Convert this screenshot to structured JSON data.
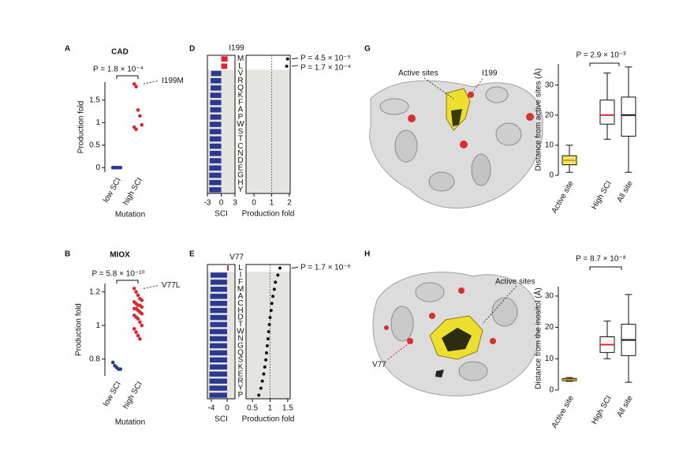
{
  "chart_data": [
    {
      "type": "strip",
      "panel": "A",
      "title": "CAD",
      "ylabel": "Production fold",
      "xlabel": "Mutation",
      "categories": [
        "low SCI",
        "high SCI"
      ],
      "colors": [
        "#2b3990",
        "#e0262b"
      ],
      "values": [
        [
          0,
          0,
          0,
          0,
          0,
          0,
          0
        ],
        [
          1.86,
          1.8,
          1.28,
          1.15,
          0.95,
          0.9,
          0.85
        ]
      ],
      "ylim": [
        -0.1,
        1.9
      ],
      "yticks": [
        0,
        0.5,
        1,
        1.5
      ],
      "annotation": "P = 1.8 × 10⁻⁴",
      "highlight_label": "I199M"
    },
    {
      "type": "strip",
      "panel": "B",
      "title": "MIOX",
      "ylabel": "Production fold",
      "xlabel": "Mutation",
      "categories": [
        "low SCI",
        "high SCI"
      ],
      "colors": [
        "#2b3990",
        "#e0262b"
      ],
      "values": [
        [
          0.78,
          0.76,
          0.75,
          0.74,
          0.74
        ],
        [
          1.22,
          1.2,
          1.18,
          1.16,
          1.15,
          1.14,
          1.13,
          1.12,
          1.12,
          1.11,
          1.1,
          1.1,
          1.09,
          1.08,
          1.07,
          1.06,
          1.05,
          1.04,
          1.02,
          1.0,
          0.98,
          0.96,
          0.94,
          0.92
        ]
      ],
      "ylim": [
        0.7,
        1.25
      ],
      "yticks": [
        0.8,
        1,
        1.2
      ],
      "annotation": "P = 5.8 × 10⁻¹⁰",
      "highlight_label": "V77L"
    },
    {
      "type": "bar-dot",
      "panel": "D",
      "title": "I199",
      "categories": [
        "M",
        "L",
        "V",
        "R",
        "Q",
        "K",
        "F",
        "A",
        "P",
        "W",
        "S",
        "T",
        "C",
        "N",
        "D",
        "E",
        "G",
        "H",
        "Y"
      ],
      "bar_values": [
        1.4,
        1.3,
        -2.2,
        -2.3,
        -2.3,
        -2.4,
        -2.4,
        -2.4,
        -2.4,
        -2.5,
        -2.5,
        -2.5,
        -2.5,
        -2.5,
        -2.5,
        -2.6,
        -2.6,
        -2.6,
        -2.6
      ],
      "bar_colors": [
        "#e0262b",
        "#e0262b",
        "#2b3990",
        "#2b3990",
        "#2b3990",
        "#2b3990",
        "#2b3990",
        "#2b3990",
        "#2b3990",
        "#2b3990",
        "#2b3990",
        "#2b3990",
        "#2b3990",
        "#2b3990",
        "#2b3990",
        "#2b3990",
        "#2b3990",
        "#2b3990",
        "#2b3990"
      ],
      "bar_xlim": [
        -3,
        3
      ],
      "bar_xticks": [
        -3,
        0,
        3
      ],
      "bar_xlabel": "SCI",
      "dot_values": [
        1.9,
        1.85,
        null,
        null,
        null,
        null,
        null,
        null,
        null,
        null,
        null,
        null,
        null,
        null,
        null,
        null,
        null,
        null,
        null
      ],
      "dot_color": "#111111",
      "dot_xlim": [
        -0.45,
        2.05
      ],
      "dot_xticks": [
        0,
        1,
        2
      ],
      "dot_xlabel": "Production fold",
      "dot_reference": 1,
      "annotations": [
        "P = 4.5 × 10⁻⁵",
        "P = 1.7 × 10⁻⁴"
      ]
    },
    {
      "type": "bar-dot",
      "panel": "E",
      "title": "V77",
      "categories": [
        "L",
        "I",
        "F",
        "M",
        "A",
        "C",
        "H",
        "D",
        "T",
        "W",
        "N",
        "G",
        "Q",
        "S",
        "K",
        "E",
        "R",
        "Y",
        "P"
      ],
      "bar_values": [
        0.4,
        -4.2,
        -4.2,
        -4.2,
        -4.3,
        -4.3,
        -4.3,
        -4.3,
        -4.3,
        -4.4,
        -4.4,
        -4.4,
        -4.4,
        -4.4,
        -4.4,
        -4.5,
        -4.5,
        -4.5,
        -4.5
      ],
      "bar_colors": [
        "#e0262b",
        "#2b3990",
        "#2b3990",
        "#2b3990",
        "#2b3990",
        "#2b3990",
        "#2b3990",
        "#2b3990",
        "#2b3990",
        "#2b3990",
        "#2b3990",
        "#2b3990",
        "#2b3990",
        "#2b3990",
        "#2b3990",
        "#2b3990",
        "#2b3990",
        "#2b3990",
        "#2b3990"
      ],
      "bar_xlim": [
        -5,
        2
      ],
      "bar_xticks": [
        -4,
        0
      ],
      "bar_xlabel": "SCI",
      "dot_values": [
        1.28,
        1.22,
        1.15,
        1.12,
        1.08,
        1.05,
        1.03,
        1.0,
        0.98,
        0.96,
        0.94,
        0.92,
        0.9,
        0.88,
        0.85,
        0.82,
        0.78,
        0.74,
        0.68
      ],
      "dot_color": "#111111",
      "dot_xlim": [
        0.32,
        1.57
      ],
      "dot_xticks": [
        0.5,
        1,
        1.5
      ],
      "dot_xlabel": "Production fold",
      "dot_reference": 1,
      "annotations": [
        "P = 1.7 × 10⁻⁶"
      ]
    },
    {
      "type": "box",
      "panel": "G",
      "ylabel": "Distance from active sites (Å)",
      "categories": [
        "Active site",
        "High SCI",
        "All site"
      ],
      "boxes": [
        {
          "min": 1,
          "q1": 3.5,
          "median": 5,
          "q3": 6.5,
          "max": 10
        },
        {
          "min": 12,
          "q1": 17,
          "median": 20,
          "q3": 25,
          "max": 34
        },
        {
          "min": 1,
          "q1": 13,
          "median": 20,
          "q3": 26,
          "max": 36
        }
      ],
      "box_colors": [
        "#f5e663",
        "#ffffff",
        "#ffffff"
      ],
      "median_colors": [
        "#d4a017",
        "#e0262b",
        "#111111"
      ],
      "ylim": [
        0,
        37
      ],
      "yticks": [
        0,
        10,
        20,
        30
      ],
      "annotation": "P = 2.9 × 10⁻³"
    },
    {
      "type": "box",
      "panel": "H",
      "ylabel": "Distance from the inositol (Å)",
      "categories": [
        "Active site",
        "High SCI",
        "All site"
      ],
      "boxes": [
        {
          "min": 2.8,
          "q1": 3,
          "median": 3.3,
          "q3": 3.7,
          "max": 4
        },
        {
          "min": 10,
          "q1": 12,
          "median": 14.5,
          "q3": 17,
          "max": 22
        },
        {
          "min": 2.5,
          "q1": 11,
          "median": 16,
          "q3": 21,
          "max": 30.5
        }
      ],
      "box_colors": [
        "#f5e663",
        "#ffffff",
        "#ffffff"
      ],
      "median_colors": [
        "#d4a017",
        "#e0262b",
        "#111111"
      ],
      "ylim": [
        0,
        33
      ],
      "yticks": [
        0,
        10,
        20,
        30
      ],
      "annotation": "P = 8.7 × 10⁻⁸"
    }
  ],
  "images": [
    {
      "annotations": [
        {
          "text": "Active sites",
          "color": "#111111"
        },
        {
          "text": "I199",
          "color": "#e0262b"
        }
      ]
    },
    {
      "annotations": [
        {
          "text": "Active sites",
          "color": "#111111"
        },
        {
          "text": "V77",
          "color": "#e0262b"
        }
      ]
    }
  ]
}
